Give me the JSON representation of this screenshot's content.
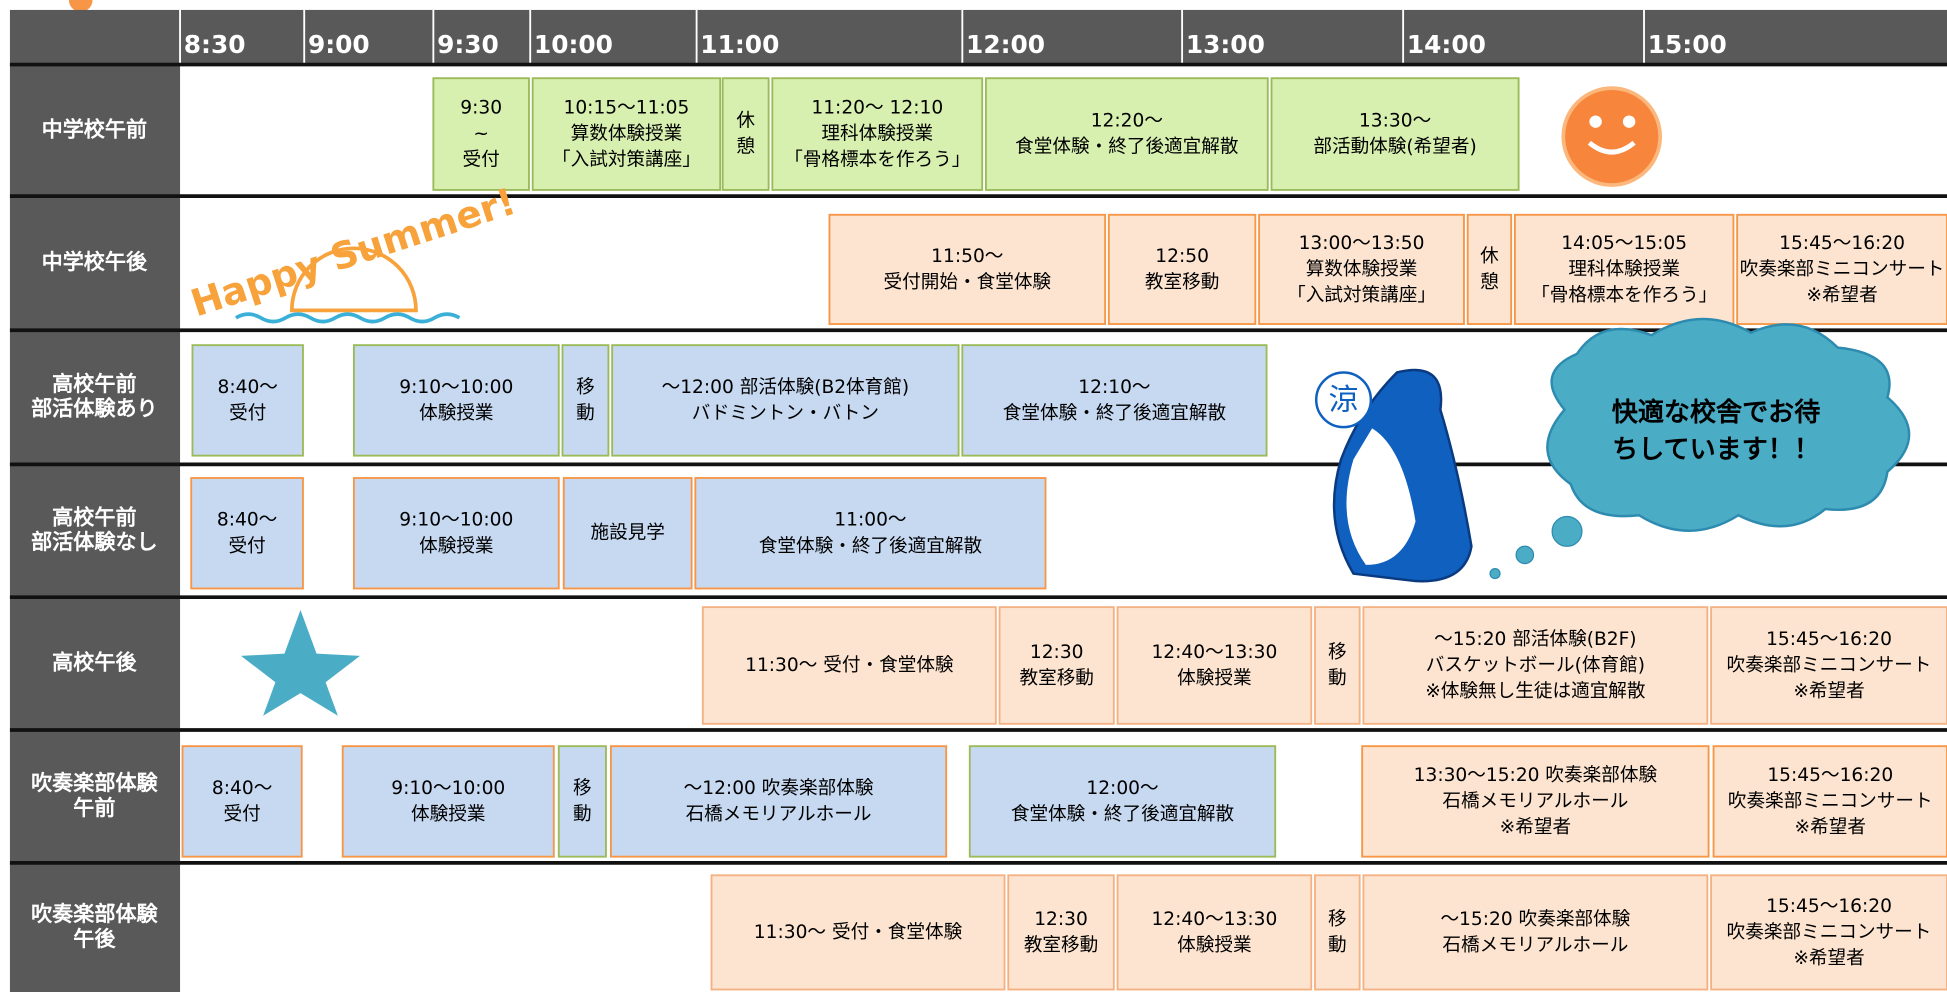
{
  "header": {
    "times": [
      "8:30",
      "9:00",
      "9:30",
      "10:00",
      "11:00",
      "12:00",
      "13:00",
      "14:00",
      "15:00"
    ]
  },
  "rows": [
    {
      "label": [
        "中学校午前"
      ],
      "blocks": [
        {
          "lines": [
            "9:30",
            "~",
            "受付"
          ]
        },
        {
          "lines": [
            "10:15～11:05",
            "算数体験授業",
            "「入試対策講座」"
          ]
        },
        {
          "lines": [
            "休",
            "憩"
          ]
        },
        {
          "lines": [
            "11:20～ 12:10",
            "理科体験授業",
            "「骨格標本を作ろう」"
          ]
        },
        {
          "lines": [
            "12:20～",
            "食堂体験・終了後適宜解散"
          ]
        },
        {
          "lines": [
            "13:30～",
            "部活動体験(希望者)"
          ]
        }
      ]
    },
    {
      "label": [
        "中学校午後"
      ],
      "blocks": [
        {
          "lines": [
            "11:50～",
            "受付開始・食堂体験"
          ]
        },
        {
          "lines": [
            "12:50",
            "教室移動"
          ]
        },
        {
          "lines": [
            "13:00～13:50",
            "算数体験授業",
            "「入試対策講座」"
          ]
        },
        {
          "lines": [
            "休",
            "憩"
          ]
        },
        {
          "lines": [
            "14:05～15:05",
            "理科体験授業",
            "「骨格標本を作ろう」"
          ]
        },
        {
          "lines": [
            "15:45～16:20",
            "吹奏楽部ミニコンサート",
            "※希望者"
          ]
        }
      ]
    },
    {
      "label": [
        "高校午前",
        "部活体験あり"
      ],
      "blocks": [
        {
          "lines": [
            "8:40～",
            "受付"
          ]
        },
        {
          "lines": [
            "9:10～10:00",
            "体験授業"
          ]
        },
        {
          "lines": [
            "移",
            "動"
          ]
        },
        {
          "lines": [
            "～12:00 部活体験(B2体育館)",
            "バドミントン・バトン"
          ]
        },
        {
          "lines": [
            "12:10～",
            "食堂体験・終了後適宜解散"
          ]
        }
      ]
    },
    {
      "label": [
        "高校午前",
        "部活体験なし"
      ],
      "blocks": [
        {
          "lines": [
            "8:40～",
            "受付"
          ]
        },
        {
          "lines": [
            "9:10～10:00",
            "体験授業"
          ]
        },
        {
          "lines": [
            "施設見学"
          ]
        },
        {
          "lines": [
            "11:00～",
            "食堂体験・終了後適宜解散"
          ]
        }
      ]
    },
    {
      "label": [
        "高校午後"
      ],
      "blocks": [
        {
          "lines": [
            "11:30～ 受付・食堂体験"
          ]
        },
        {
          "lines": [
            "12:30",
            "教室移動"
          ]
        },
        {
          "lines": [
            "12:40～13:30",
            "体験授業"
          ]
        },
        {
          "lines": [
            "移",
            "動"
          ]
        },
        {
          "lines": [
            "～15:20 部活体験(B2F)",
            "バスケットボール(体育館)",
            "※体験無し生徒は適宜解散"
          ]
        },
        {
          "lines": [
            "15:45～16:20",
            "吹奏楽部ミニコンサート",
            "※希望者"
          ]
        }
      ]
    },
    {
      "label": [
        "吹奏楽部体験",
        "午前"
      ],
      "blocks": [
        {
          "lines": [
            "8:40～",
            "受付"
          ]
        },
        {
          "lines": [
            "9:10～10:00",
            "体験授業"
          ]
        },
        {
          "lines": [
            "移",
            "動"
          ]
        },
        {
          "lines": [
            "～12:00 吹奏楽部体験",
            "石橋メモリアルホール"
          ]
        },
        {
          "lines": [
            "12:00～",
            "食堂体験・終了後適宜解散"
          ]
        },
        {
          "lines": [
            "13:30～15:20 吹奏楽部体験",
            "石橋メモリアルホール",
            "※希望者"
          ]
        },
        {
          "lines": [
            "15:45～16:20",
            "吹奏楽部ミニコンサート",
            "※希望者"
          ]
        }
      ]
    },
    {
      "label": [
        "吹奏楽部体験",
        "午後"
      ],
      "blocks": [
        {
          "lines": [
            "11:30～ 受付・食堂体験"
          ]
        },
        {
          "lines": [
            "12:30",
            "教室移動"
          ]
        },
        {
          "lines": [
            "12:40～13:30",
            "体験授業"
          ]
        },
        {
          "lines": [
            "移",
            "動"
          ]
        },
        {
          "lines": [
            "～15:20 吹奏楽部体験",
            "石橋メモリアルホール"
          ]
        },
        {
          "lines": [
            "15:45～16:20",
            "吹奏楽部ミニコンサート",
            "※希望者"
          ]
        }
      ]
    }
  ],
  "decorations": {
    "happy_summer": "Happy Summer!",
    "fan": "涼",
    "cloud": [
      "快適な校舎でお待",
      "ちしています！！"
    ]
  }
}
